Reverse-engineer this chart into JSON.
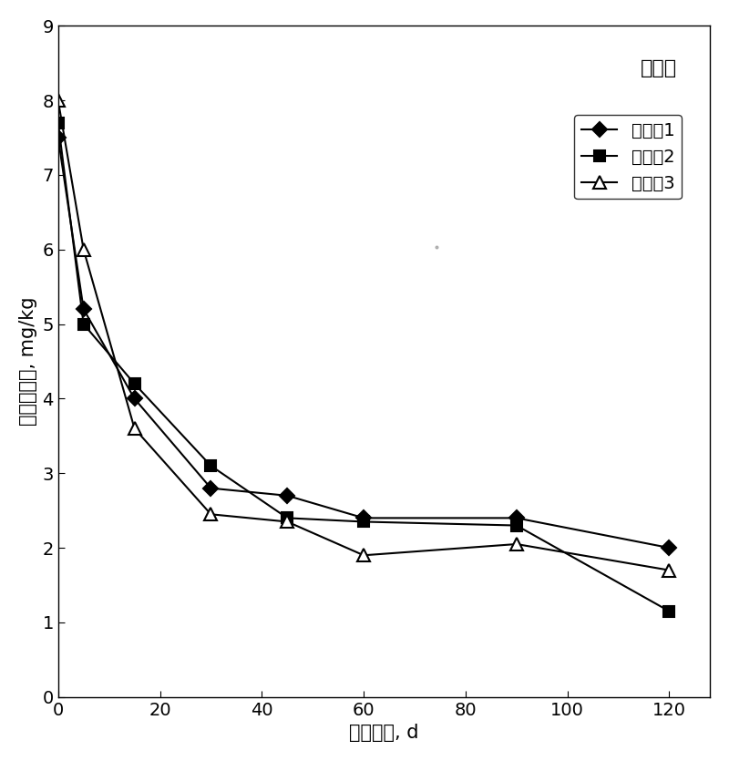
{
  "title": "红黄壤",
  "xlabel": "培养时间, d",
  "ylabel": "土壤有效硒, mg/kg",
  "xlim": [
    0,
    128
  ],
  "ylim": [
    0,
    9
  ],
  "xticks": [
    0,
    20,
    40,
    60,
    80,
    100,
    120
  ],
  "yticks": [
    0,
    1,
    2,
    3,
    4,
    5,
    6,
    7,
    8,
    9
  ],
  "series": [
    {
      "label": "实施例1",
      "x": [
        0,
        5,
        15,
        30,
        45,
        60,
        90,
        120
      ],
      "y": [
        7.5,
        5.2,
        4.0,
        2.8,
        2.7,
        2.4,
        2.4,
        2.0
      ],
      "color": "#000000",
      "marker": "D",
      "markersize": 8,
      "linestyle": "-",
      "markerfacecolor": "#000000"
    },
    {
      "label": "实施例2",
      "x": [
        0,
        5,
        15,
        30,
        45,
        60,
        90,
        120
      ],
      "y": [
        7.7,
        5.0,
        4.2,
        3.1,
        2.4,
        2.35,
        2.3,
        1.15
      ],
      "color": "#000000",
      "marker": "s",
      "markersize": 8,
      "linestyle": "-",
      "markerfacecolor": "#000000"
    },
    {
      "label": "实施例3",
      "x": [
        0,
        5,
        15,
        30,
        45,
        60,
        90,
        120
      ],
      "y": [
        8.0,
        6.0,
        3.6,
        2.45,
        2.35,
        1.9,
        2.05,
        1.7
      ],
      "color": "#000000",
      "marker": "^",
      "markersize": 10,
      "linestyle": "-",
      "markerfacecolor": "white"
    }
  ],
  "background_color": "#ffffff",
  "title_fontsize": 16,
  "label_fontsize": 15,
  "tick_fontsize": 14,
  "legend_fontsize": 14
}
